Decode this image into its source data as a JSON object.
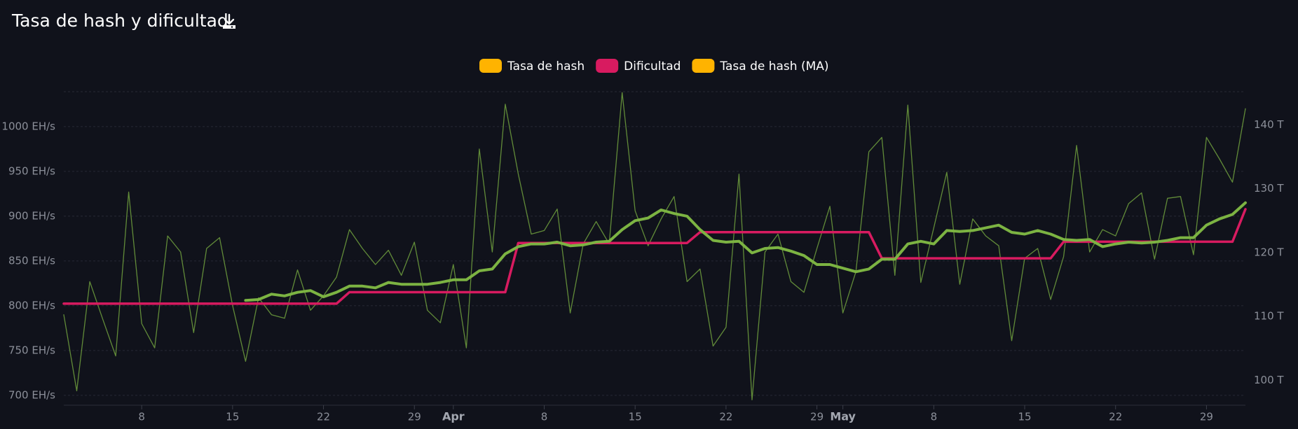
{
  "chart_data": {
    "type": "line",
    "title": "Tasa de hash y dificultad",
    "x": [
      2,
      3,
      4,
      5,
      6,
      7,
      8,
      9,
      10,
      11,
      12,
      13,
      14,
      15,
      16,
      17,
      18,
      19,
      20,
      21,
      22,
      23,
      24,
      25,
      26,
      27,
      28,
      29,
      30,
      31,
      32,
      33,
      34,
      35,
      36,
      37,
      38,
      39,
      40,
      41,
      42,
      43,
      44,
      45,
      46,
      47,
      48,
      49,
      50,
      51,
      52,
      53,
      54,
      55,
      56,
      57,
      58,
      59,
      60,
      61,
      62,
      63,
      64,
      65,
      66,
      67,
      68,
      69,
      70,
      71,
      72,
      73,
      74,
      75,
      76,
      77,
      78,
      79,
      80,
      81,
      82,
      83,
      84,
      85,
      86,
      87,
      88,
      89,
      90,
      91,
      92,
      93
    ],
    "xlim": [
      2,
      93
    ],
    "xticks": [
      {
        "value": 8,
        "label": "8"
      },
      {
        "value": 15,
        "label": "15"
      },
      {
        "value": 22,
        "label": "22"
      },
      {
        "value": 29,
        "label": "29"
      },
      {
        "value": 32,
        "label": "Apr"
      },
      {
        "value": 39,
        "label": "8"
      },
      {
        "value": 46,
        "label": "15"
      },
      {
        "value": 53,
        "label": "22"
      },
      {
        "value": 60,
        "label": "29"
      },
      {
        "value": 62,
        "label": "May"
      },
      {
        "value": 69,
        "label": "8"
      },
      {
        "value": 76,
        "label": "15"
      },
      {
        "value": 83,
        "label": "22"
      },
      {
        "value": 90,
        "label": "29"
      }
    ],
    "ylim": [
      689,
      1039
    ],
    "yticks": [
      {
        "value": 700,
        "label": "700 EH/s"
      },
      {
        "value": 750,
        "label": "750 EH/s"
      },
      {
        "value": 800,
        "label": "800 EH/s"
      },
      {
        "value": 850,
        "label": "850 EH/s"
      },
      {
        "value": 900,
        "label": "900 EH/s"
      },
      {
        "value": 950,
        "label": "950 EH/s"
      },
      {
        "value": 1000,
        "label": "1000 EH/s"
      }
    ],
    "y2lim": [
      96.1,
      145.2
    ],
    "y2ticks": [
      {
        "value": 100,
        "label": "100 T"
      },
      {
        "value": 110,
        "label": "110 T"
      },
      {
        "value": 120,
        "label": "120 T"
      },
      {
        "value": 130,
        "label": "130 T"
      },
      {
        "value": 140,
        "label": "140 T"
      }
    ],
    "grid": true,
    "legend": "top",
    "gradient": [
      "#7cb342",
      "#fdd835",
      "#f57c00"
    ],
    "series": [
      {
        "name": "Tasa de hash",
        "color": "#ffb300",
        "style": "thin",
        "values": [
          790,
          705,
          827,
          785,
          744,
          927,
          780,
          753,
          878,
          860,
          770,
          864,
          876,
          800,
          738,
          809,
          790,
          786,
          840,
          795,
          811,
          832,
          885,
          864,
          846,
          862,
          834,
          871,
          795,
          781,
          846,
          753,
          975,
          860,
          1025,
          947,
          880,
          884,
          908,
          792,
          869,
          894,
          869,
          1038,
          906,
          867,
          897,
          922,
          827,
          841,
          755,
          776,
          947,
          695,
          860,
          880,
          827,
          815,
          864,
          911,
          792,
          838,
          972,
          988,
          834,
          1024,
          826,
          887,
          949,
          824,
          897,
          878,
          867,
          761,
          853,
          864,
          807,
          855,
          979,
          860,
          885,
          878,
          914,
          926,
          852,
          920,
          922,
          857,
          988,
          964,
          938,
          1020
        ]
      },
      {
        "name": "Dificultad",
        "color": "#d81b60",
        "axis": "y2",
        "values": [
          112.0,
          112.0,
          112.0,
          112.0,
          112.0,
          112.0,
          112.0,
          112.0,
          112.0,
          112.0,
          112.0,
          112.0,
          112.0,
          112.0,
          112.0,
          112.0,
          112.0,
          112.0,
          112.0,
          112.0,
          112.0,
          112.0,
          113.8,
          113.8,
          113.8,
          113.8,
          113.8,
          113.8,
          113.8,
          113.8,
          113.8,
          113.8,
          113.8,
          113.8,
          113.8,
          121.5,
          121.5,
          121.5,
          121.5,
          121.5,
          121.5,
          121.5,
          121.5,
          121.5,
          121.5,
          121.5,
          121.5,
          121.5,
          121.5,
          123.2,
          123.2,
          123.2,
          123.2,
          123.2,
          123.2,
          123.2,
          123.2,
          123.2,
          123.2,
          123.2,
          123.2,
          123.2,
          123.2,
          119.1,
          119.1,
          119.1,
          119.1,
          119.1,
          119.1,
          119.1,
          119.1,
          119.1,
          119.1,
          119.1,
          119.1,
          119.1,
          119.1,
          121.7,
          121.7,
          121.7,
          121.7,
          121.7,
          121.7,
          121.7,
          121.7,
          121.7,
          121.7,
          121.7,
          121.7,
          121.7,
          121.7,
          126.8
        ]
      },
      {
        "name": "Tasa de hash (MA)",
        "color": "#ffb300",
        "style": "thick",
        "values": [
          null,
          null,
          null,
          null,
          null,
          null,
          null,
          null,
          null,
          null,
          null,
          null,
          null,
          null,
          806,
          807,
          813,
          811,
          815,
          817,
          810,
          815,
          822,
          822,
          820,
          826,
          824,
          824,
          824,
          826,
          829,
          829,
          839,
          841,
          858,
          866,
          869,
          869,
          871,
          867,
          868,
          871,
          872,
          885,
          895,
          898,
          907,
          903,
          900,
          885,
          873,
          871,
          872,
          859,
          864,
          865,
          861,
          856,
          846,
          846,
          842,
          838,
          841,
          852,
          852,
          869,
          872,
          869,
          884,
          883,
          884,
          887,
          890,
          882,
          880,
          884,
          880,
          874,
          873,
          874,
          866,
          869,
          871,
          870,
          871,
          873,
          876,
          876,
          890,
          897,
          902,
          915
        ]
      }
    ]
  }
}
